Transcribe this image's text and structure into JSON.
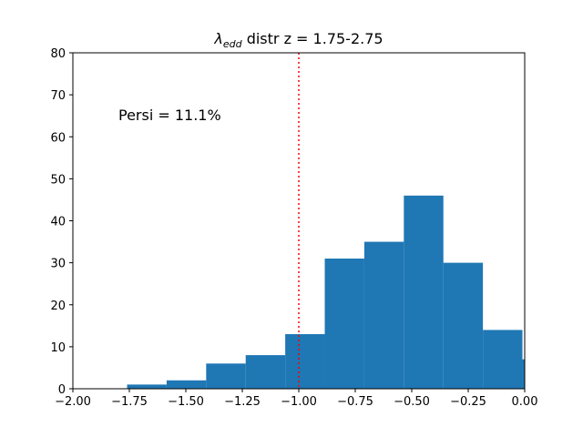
{
  "chart_data": {
    "type": "bar",
    "title_symbol": "λ",
    "title_subscript": "edd",
    "title_rest": " distr z = 1.75-2.75",
    "annotation": "Persi = 11.1%",
    "xlim": [
      -2.0,
      0.0
    ],
    "ylim": [
      0,
      80
    ],
    "x_ticks": [
      -2.0,
      -1.75,
      -1.5,
      -1.25,
      -1.0,
      -0.75,
      -0.5,
      -0.25,
      0.0
    ],
    "x_tick_labels": [
      "−2.00",
      "−1.75",
      "−1.50",
      "−1.25",
      "−1.00",
      "−0.75",
      "−0.50",
      "−0.25",
      "0.00"
    ],
    "y_ticks": [
      0,
      10,
      20,
      30,
      40,
      50,
      60,
      70,
      80
    ],
    "y_tick_labels": [
      "0",
      "10",
      "20",
      "30",
      "40",
      "50",
      "60",
      "70",
      "80"
    ],
    "bins": [
      {
        "x0": -1.76,
        "x1": -1.585,
        "value": 1
      },
      {
        "x0": -1.585,
        "x1": -1.41,
        "value": 2
      },
      {
        "x0": -1.41,
        "x1": -1.235,
        "value": 6
      },
      {
        "x0": -1.235,
        "x1": -1.06,
        "value": 8
      },
      {
        "x0": -1.06,
        "x1": -0.885,
        "value": 13
      },
      {
        "x0": -0.885,
        "x1": -0.71,
        "value": 31
      },
      {
        "x0": -0.71,
        "x1": -0.535,
        "value": 35
      },
      {
        "x0": -0.535,
        "x1": -0.36,
        "value": 46
      },
      {
        "x0": -0.36,
        "x1": -0.185,
        "value": 30
      },
      {
        "x0": -0.185,
        "x1": -0.01,
        "value": 14
      },
      {
        "x0": -0.01,
        "x1": 0.0,
        "value": 7
      }
    ],
    "vline": {
      "x": -1.0,
      "color": "#ff0000",
      "style": "dotted"
    },
    "bar_color": "#1f77b4",
    "grid": false
  }
}
